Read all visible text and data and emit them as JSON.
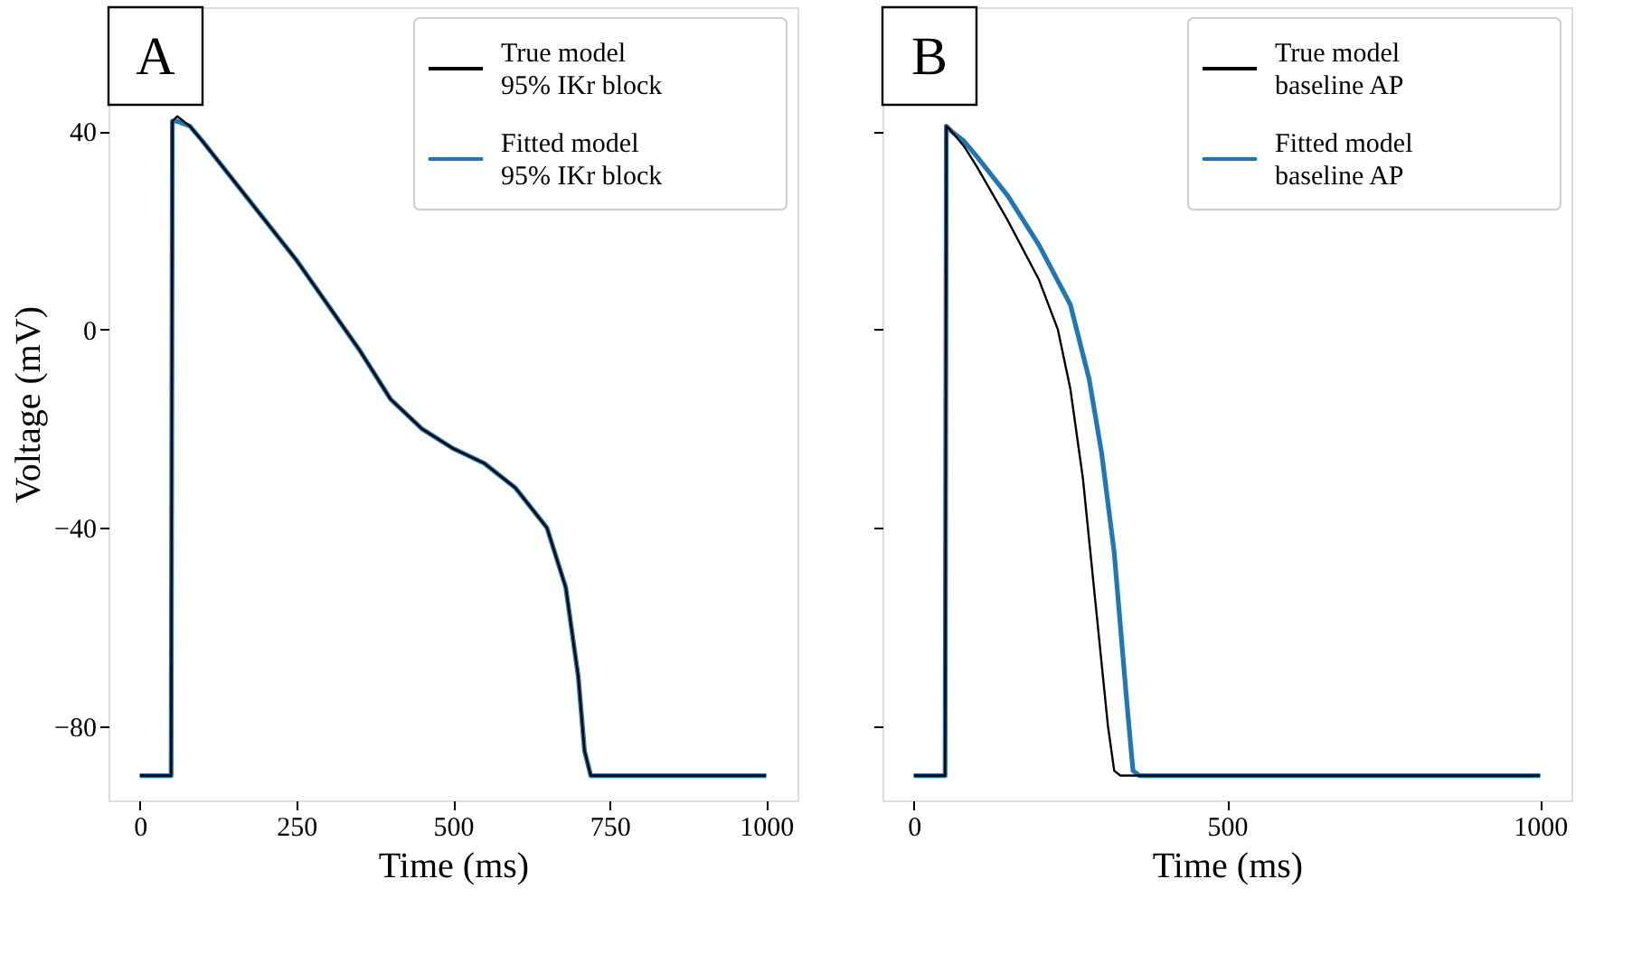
{
  "chart_data": [
    {
      "type": "line",
      "xlabel": "Time (ms)",
      "ylabel": "Voltage (mV)",
      "annotations": [
        "A"
      ],
      "legend": "top right",
      "xlim": [
        -50,
        1050
      ],
      "ylim": [
        -95,
        65
      ],
      "xticks": [
        0,
        250,
        500,
        750,
        {
          "value": 1000,
          "label": "1000"
        }
      ],
      "yticks": [
        -80,
        -40,
        0,
        40
      ],
      "series": [
        {
          "name": "True model\n95% IKr block",
          "color": "#000000",
          "x": [
            0,
            50,
            52,
            60,
            80,
            100,
            150,
            200,
            250,
            300,
            350,
            400,
            450,
            500,
            550,
            600,
            650,
            680,
            700,
            710,
            720,
            1000
          ],
          "values": [
            -90,
            -90,
            42,
            43,
            41,
            38,
            30,
            22,
            14,
            5,
            -4,
            -14,
            -20,
            -24,
            -27,
            -32,
            -40,
            -52,
            -70,
            -85,
            -90,
            -90
          ]
        },
        {
          "name": "Fitted model\n95% IKr block",
          "color": "#1f77b4",
          "x": [
            0,
            50,
            52,
            60,
            80,
            100,
            150,
            200,
            250,
            300,
            350,
            400,
            450,
            500,
            550,
            600,
            650,
            680,
            700,
            710,
            720,
            1000
          ],
          "values": [
            -90,
            -90,
            42,
            42,
            41,
            38,
            30,
            22,
            14,
            5,
            -4,
            -14,
            -20,
            -24,
            -27,
            -32,
            -40,
            -52,
            -70,
            -85,
            -90,
            -90
          ]
        }
      ]
    },
    {
      "type": "line",
      "xlabel": "Time (ms)",
      "annotations": [
        "B"
      ],
      "legend": "top right",
      "tick_labels": "x",
      "xlim": [
        -50,
        1050
      ],
      "ylim": [
        -95,
        65
      ],
      "xticks": [
        0,
        500,
        {
          "value": 1000,
          "label": "1000"
        }
      ],
      "yticks": [
        -80,
        -40,
        0,
        40
      ],
      "series": [
        {
          "name": "True model\nbaseline AP",
          "color": "#000000",
          "x": [
            0,
            50,
            52,
            60,
            80,
            100,
            150,
            200,
            230,
            250,
            270,
            290,
            310,
            320,
            330,
            1000
          ],
          "values": [
            -90,
            -90,
            41,
            40,
            37,
            33,
            22,
            10,
            0,
            -12,
            -30,
            -55,
            -80,
            -89,
            -90,
            -90
          ]
        },
        {
          "name": "Fitted model\nbaseline AP",
          "color": "#1f77b4",
          "x": [
            0,
            50,
            52,
            60,
            80,
            100,
            150,
            200,
            250,
            280,
            300,
            320,
            340,
            350,
            360,
            1000
          ],
          "values": [
            -90,
            -90,
            41,
            40,
            38,
            35,
            27,
            17,
            5,
            -10,
            -25,
            -45,
            -75,
            -89,
            -90,
            -90
          ]
        }
      ]
    }
  ]
}
